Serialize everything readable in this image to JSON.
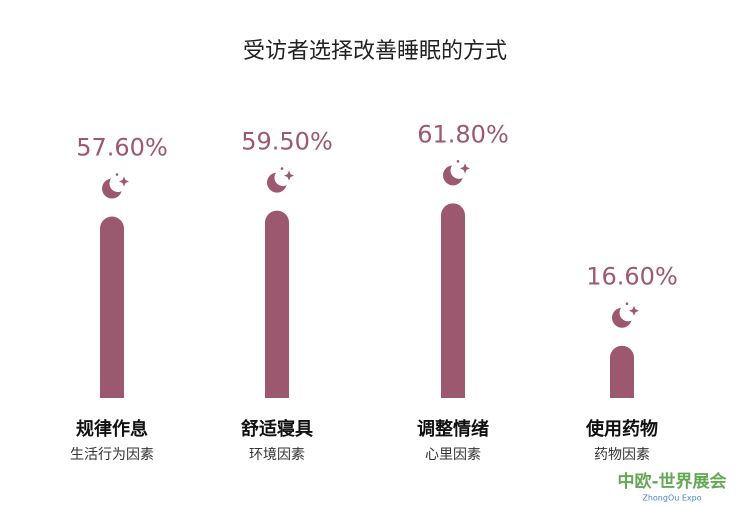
{
  "chart_data": {
    "type": "bar",
    "title": "受访者选择改善睡眠的方式",
    "categories": [
      "规律作息",
      "舒适寝具",
      "调整情绪",
      "使用药物"
    ],
    "subcategories": [
      "生活行为因素",
      "环境因素",
      "心里因素",
      "药物因素"
    ],
    "values": [
      57.6,
      59.5,
      61.8,
      16.6
    ],
    "value_labels": [
      "57.60%",
      "59.50%",
      "61.80%",
      "16.60%"
    ],
    "color": "#9b586f"
  },
  "watermark": {
    "text": "中欧-世界展会",
    "subtext": "ZhongOu Expo"
  }
}
